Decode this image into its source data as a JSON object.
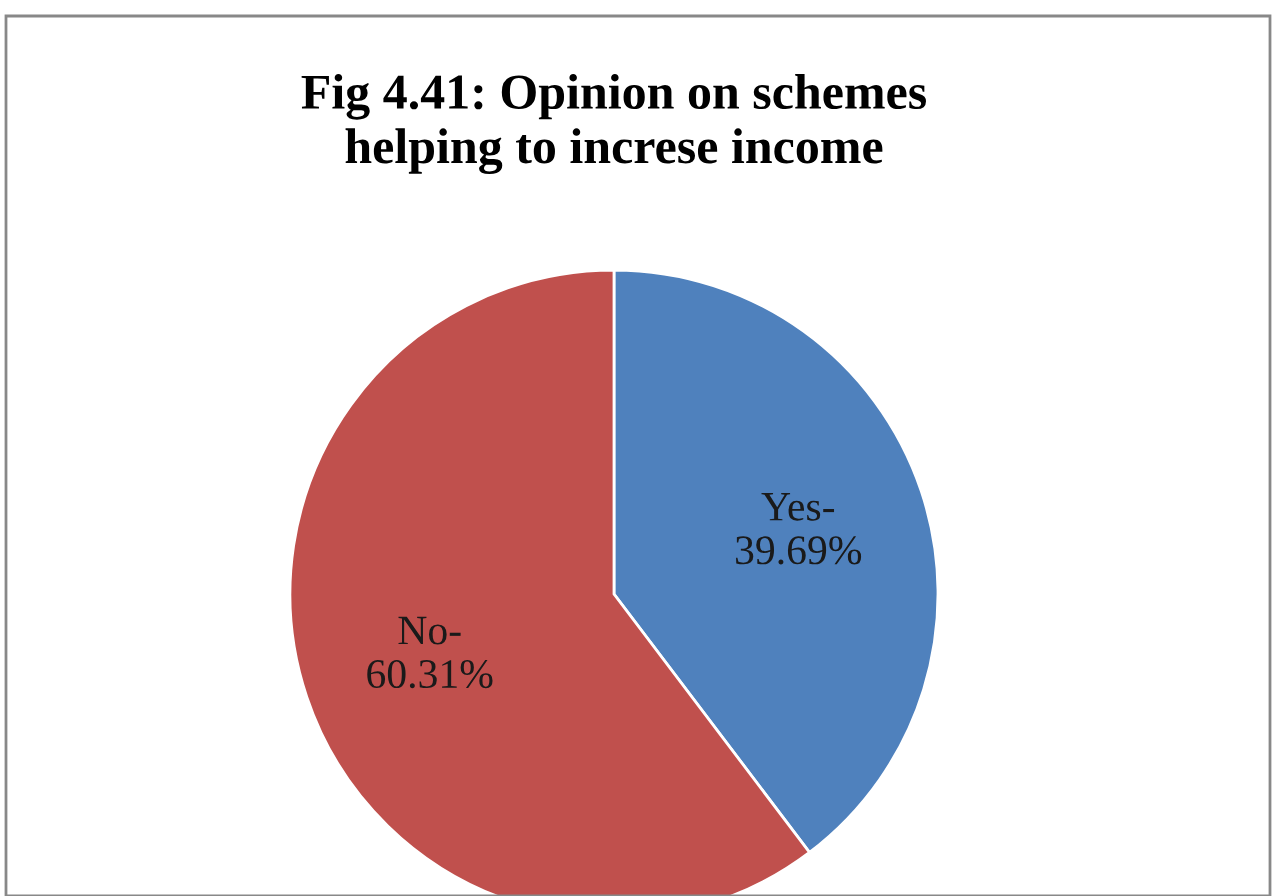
{
  "chart_data": {
    "type": "pie",
    "title": "Fig 4.41: Opinion on schemes\nhelping to increse income",
    "categories": [
      "Yes-",
      "No-"
    ],
    "values": [
      39.69,
      60.31
    ],
    "value_labels": [
      "39.69%",
      "60.31%"
    ],
    "colors": [
      "#4f81bd",
      "#c0504d"
    ],
    "legend": false
  }
}
